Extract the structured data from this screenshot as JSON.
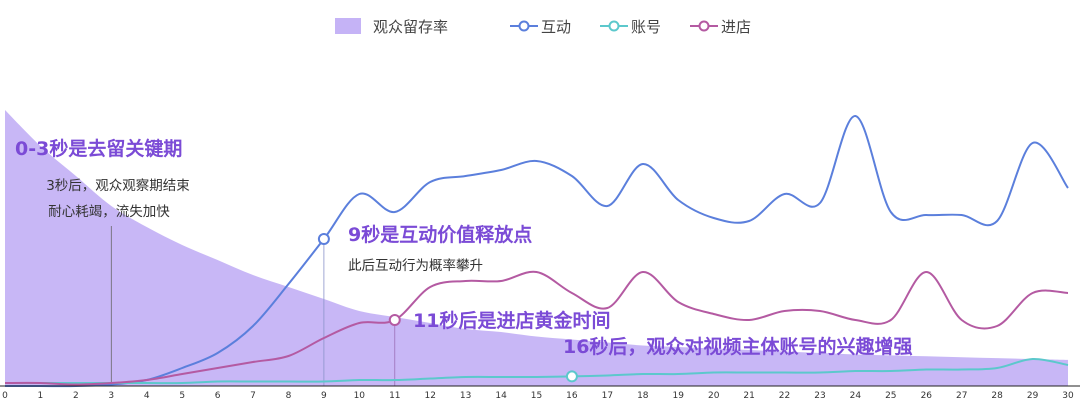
{
  "chart_data": {
    "type": "line",
    "title": "",
    "xlabel": "",
    "ylabel": "",
    "x": [
      0,
      1,
      2,
      3,
      4,
      5,
      6,
      7,
      8,
      9,
      10,
      11,
      12,
      13,
      14,
      15,
      16,
      17,
      18,
      19,
      20,
      21,
      22,
      23,
      24,
      25,
      26,
      27,
      28,
      29,
      30
    ],
    "x_tick_labels": [
      "0",
      "1",
      "2",
      "3",
      "4",
      "5",
      "6",
      "7",
      "8",
      "9",
      "10",
      "11",
      "12",
      "13",
      "14",
      "15",
      "16",
      "17",
      "18",
      "19",
      "20",
      "21",
      "22",
      "23",
      "24",
      "25",
      "26",
      "27",
      "28",
      "29",
      "30"
    ],
    "ylim": [
      0,
      100
    ],
    "grid": false,
    "legend_position": "top-center",
    "series": [
      {
        "name": "观众留存率",
        "kind": "area",
        "color": "#c5b3f6",
        "values": [
          92,
          80,
          70,
          60,
          53,
          47,
          42,
          37,
          33,
          29,
          25,
          23,
          21,
          19,
          18,
          16.5,
          15.5,
          14.5,
          13.5,
          13,
          12.5,
          12,
          11.5,
          11,
          10.5,
          10.2,
          9.9,
          9.6,
          9.3,
          9,
          8.7
        ]
      },
      {
        "name": "互动",
        "kind": "line",
        "color": "#5b7fdc",
        "values": [
          0,
          0,
          0,
          0.5,
          2,
          6,
          11,
          20,
          34,
          49,
          64,
          58,
          68,
          70,
          72,
          75,
          70,
          60,
          74,
          62,
          56,
          55,
          64,
          61,
          90,
          58,
          57,
          57,
          55,
          81,
          66
        ]
      },
      {
        "name": "账号",
        "kind": "line",
        "color": "#5cc8cc",
        "values": [
          1,
          1,
          1,
          1,
          1,
          1,
          1.5,
          1.5,
          1.5,
          1.5,
          2,
          2,
          2.5,
          3,
          3,
          3,
          3.2,
          3.5,
          4,
          4,
          4.5,
          4.5,
          4.5,
          4.5,
          5,
          5,
          5.5,
          5.5,
          6,
          9,
          7
        ]
      },
      {
        "name": "进店",
        "kind": "line",
        "color": "#b45aa2",
        "values": [
          1,
          1,
          0.5,
          1,
          2,
          4,
          6,
          8,
          10,
          16,
          21,
          22,
          33,
          35,
          35,
          38,
          31,
          26,
          38,
          28,
          24,
          22,
          25,
          25,
          22,
          22,
          38,
          22,
          20,
          31,
          31
        ]
      }
    ],
    "annotations": [
      {
        "title": "0-3秒是去留关键期",
        "lines": [
          "3秒后，观众观察期结束",
          "耐心耗竭，流失加快"
        ],
        "x": 3
      },
      {
        "title": "9秒是互动价值释放点",
        "lines": [
          "此后互动行为概率攀升"
        ],
        "x": 9,
        "series": "互动"
      },
      {
        "title": "11秒后是进店黄金时间",
        "lines": [],
        "x": 11,
        "series": "进店"
      },
      {
        "title": "16秒后，观众对视频主体账号的兴趣增强",
        "lines": [],
        "x": 16,
        "series": "账号"
      }
    ]
  }
}
